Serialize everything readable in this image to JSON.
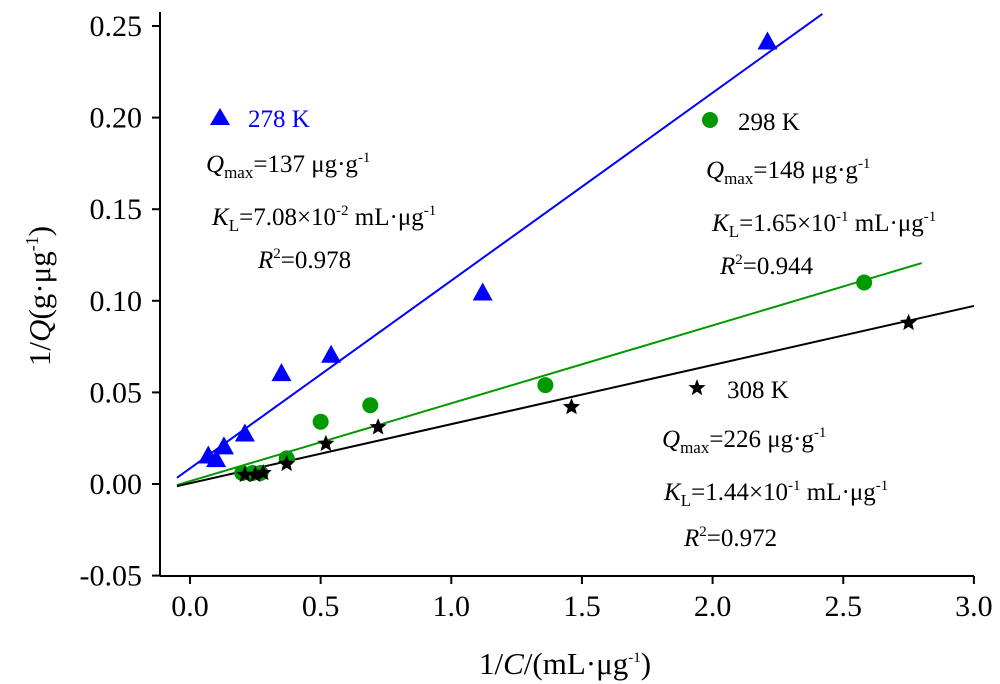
{
  "chart_data": {
    "type": "scatter",
    "xlabel": "1/C/(mL·μg-1)",
    "ylabel": "1/Q(g·μg-1)",
    "xlim": [
      -0.1,
      3.0
    ],
    "ylim": [
      -0.05,
      0.26
    ],
    "xticks": [
      "0.0",
      "0.5",
      "1.0",
      "1.5",
      "2.0",
      "2.5",
      "3.0"
    ],
    "yticks": [
      "-0.05",
      "0.00",
      "0.05",
      "0.10",
      "0.15",
      "0.20",
      "0.25"
    ],
    "grid": false,
    "series": [
      {
        "name": "278 K",
        "marker": "triangle",
        "color": "#0000ff",
        "points": [
          [
            0.07,
            0.015
          ],
          [
            0.1,
            0.013
          ],
          [
            0.13,
            0.02
          ],
          [
            0.21,
            0.027
          ],
          [
            0.35,
            0.06
          ],
          [
            0.54,
            0.07
          ],
          [
            1.12,
            0.104
          ],
          [
            2.21,
            0.241
          ]
        ],
        "fit": [
          [
            -0.05,
            0.0034
          ],
          [
            2.42,
            0.2566
          ]
        ],
        "qmax": "137 μg·g",
        "kl": "7.08×10",
        "kl_exp": "-2",
        "r2": "0.978"
      },
      {
        "name": "298 K",
        "marker": "circle",
        "color": "#009900",
        "points": [
          [
            0.2,
            0.006
          ],
          [
            0.24,
            0.006
          ],
          [
            0.27,
            0.006
          ],
          [
            0.37,
            0.014
          ],
          [
            0.5,
            0.034
          ],
          [
            0.69,
            0.043
          ],
          [
            1.36,
            0.054
          ],
          [
            2.58,
            0.11
          ]
        ],
        "fit": [
          [
            -0.05,
            -0.0006
          ],
          [
            2.8,
            0.1206
          ]
        ],
        "qmax": "148 μg·g",
        "kl": "1.65×10",
        "kl_exp": "-1",
        "r2": "0.944"
      },
      {
        "name": "308 K",
        "marker": "star",
        "color": "#000000",
        "points": [
          [
            0.21,
            0.005
          ],
          [
            0.25,
            0.005
          ],
          [
            0.28,
            0.006
          ],
          [
            0.37,
            0.011
          ],
          [
            0.52,
            0.022
          ],
          [
            0.72,
            0.031
          ],
          [
            1.46,
            0.042
          ],
          [
            2.75,
            0.088
          ]
        ],
        "fit": [
          [
            -0.05,
            -0.0012
          ],
          [
            3.0,
            0.0972
          ]
        ],
        "qmax": "226 μg·g",
        "kl": "1.44×10",
        "kl_exp": "-1",
        "r2": "0.972"
      }
    ]
  },
  "labels": {
    "q_symbol": "Q",
    "max_sub": "max",
    "k_symbol": "K",
    "l_sub": "L",
    "r_symbol": "R",
    "r_sup": "2",
    "eq": "=",
    "g_inv_sup": "-1",
    "kl_unit": " mL·μg",
    "x_axis_a": "1/",
    "x_axis_c": "C",
    "x_axis_b": "/(mL·μg",
    "x_axis_close": ")",
    "y_axis_a": "1/",
    "y_axis_q": "Q",
    "y_axis_b": "(g·μg",
    "y_axis_close": ")"
  }
}
